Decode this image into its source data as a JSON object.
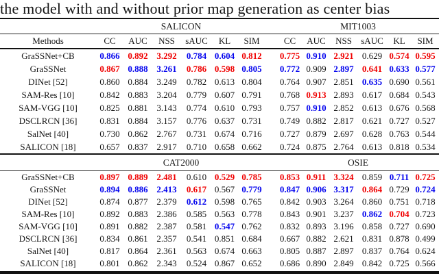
{
  "caption": "the model with and without prior map generation as center bias",
  "colors": {
    "r": "#f00000",
    "b": "#0505ee",
    "n": "#161616"
  },
  "methods_label": "Methods",
  "metrics": [
    "CC",
    "AUC",
    "NSS",
    "sAUC",
    "KL",
    "SIM"
  ],
  "tables": [
    {
      "groups": [
        "SALICON",
        "MIT1003"
      ],
      "show_metric_header": true,
      "rows": [
        {
          "method": "GraSSNet+CB",
          "values": [
            "0.866",
            "0.892",
            "3.292",
            "0.784",
            "0.604",
            "0.812",
            "0.775",
            "0.910",
            "2.921",
            "0.629",
            "0.574",
            "0.595"
          ],
          "colors": [
            "b",
            "r",
            "r",
            "b",
            "b",
            "r",
            "r",
            "b",
            "r",
            "n",
            "r",
            "r"
          ]
        },
        {
          "method": "GraSSNet",
          "values": [
            "0.867",
            "0.888",
            "3.261",
            "0.786",
            "0.598",
            "0.805",
            "0.772",
            "0.909",
            "2.897",
            "0.641",
            "0.633",
            "0.577"
          ],
          "colors": [
            "r",
            "b",
            "b",
            "r",
            "r",
            "b",
            "b",
            "n",
            "b",
            "r",
            "b",
            "b"
          ]
        },
        {
          "method": "DINet [52]",
          "values": [
            "0.860",
            "0.884",
            "3.249",
            "0.782",
            "0.613",
            "0.804",
            "0.764",
            "0.907",
            "2.851",
            "0.635",
            "0.690",
            "0.561"
          ],
          "colors": [
            "n",
            "n",
            "n",
            "n",
            "n",
            "n",
            "n",
            "n",
            "n",
            "b",
            "n",
            "n"
          ]
        },
        {
          "method": "SAM-Res [10]",
          "values": [
            "0.842",
            "0.883",
            "3.204",
            "0.779",
            "0.607",
            "0.791",
            "0.768",
            "0.913",
            "2.893",
            "0.617",
            "0.684",
            "0.543"
          ],
          "colors": [
            "n",
            "n",
            "n",
            "n",
            "n",
            "n",
            "n",
            "r",
            "n",
            "n",
            "n",
            "n"
          ]
        },
        {
          "method": "SAM-VGG [10]",
          "values": [
            "0.825",
            "0.881",
            "3.143",
            "0.774",
            "0.610",
            "0.793",
            "0.757",
            "0.910",
            "2.852",
            "0.613",
            "0.676",
            "0.568"
          ],
          "colors": [
            "n",
            "n",
            "n",
            "n",
            "n",
            "n",
            "n",
            "b",
            "n",
            "n",
            "n",
            "n"
          ]
        },
        {
          "method": "DSCLRCN [36]",
          "values": [
            "0.831",
            "0.884",
            "3.157",
            "0.776",
            "0.637",
            "0.731",
            "0.749",
            "0.882",
            "2.817",
            "0.621",
            "0.727",
            "0.527"
          ],
          "colors": [
            "n",
            "n",
            "n",
            "n",
            "n",
            "n",
            "n",
            "n",
            "n",
            "n",
            "n",
            "n"
          ]
        },
        {
          "method": "SalNet [40]",
          "values": [
            "0.730",
            "0.862",
            "2.767",
            "0.731",
            "0.674",
            "0.716",
            "0.727",
            "0.879",
            "2.697",
            "0.628",
            "0.763",
            "0.544"
          ],
          "colors": [
            "n",
            "n",
            "n",
            "n",
            "n",
            "n",
            "n",
            "n",
            "n",
            "n",
            "n",
            "n"
          ]
        },
        {
          "method": "SALICON [18]",
          "values": [
            "0.657",
            "0.837",
            "2.917",
            "0.710",
            "0.658",
            "0.662",
            "0.724",
            "0.875",
            "2.764",
            "0.613",
            "0.818",
            "0.534"
          ],
          "colors": [
            "n",
            "n",
            "n",
            "n",
            "n",
            "n",
            "n",
            "n",
            "n",
            "n",
            "n",
            "n"
          ]
        }
      ]
    },
    {
      "groups": [
        "CAT2000",
        "OSIE"
      ],
      "show_metric_header": false,
      "rows": [
        {
          "method": "GraSSNet+CB",
          "values": [
            "0.897",
            "0.889",
            "2.481",
            "0.610",
            "0.529",
            "0.785",
            "0.853",
            "0.911",
            "3.324",
            "0.859",
            "0.711",
            "0.725"
          ],
          "colors": [
            "r",
            "r",
            "r",
            "n",
            "r",
            "r",
            "r",
            "r",
            "r",
            "n",
            "b",
            "r"
          ]
        },
        {
          "method": "GraSSNet",
          "values": [
            "0.894",
            "0.886",
            "2.413",
            "0.617",
            "0.567",
            "0.779",
            "0.847",
            "0.906",
            "3.317",
            "0.864",
            "0.729",
            "0.724"
          ],
          "colors": [
            "b",
            "b",
            "b",
            "r",
            "n",
            "b",
            "b",
            "b",
            "b",
            "r",
            "n",
            "b"
          ]
        },
        {
          "method": "DINet [52]",
          "values": [
            "0.874",
            "0.877",
            "2.379",
            "0.612",
            "0.598",
            "0.765",
            "0.842",
            "0.903",
            "3.264",
            "0.860",
            "0.751",
            "0.718"
          ],
          "colors": [
            "n",
            "n",
            "n",
            "b",
            "n",
            "n",
            "n",
            "n",
            "n",
            "n",
            "n",
            "n"
          ]
        },
        {
          "method": "SAM-Res [10]",
          "values": [
            "0.892",
            "0.883",
            "2.386",
            "0.585",
            "0.563",
            "0.778",
            "0.843",
            "0.901",
            "3.237",
            "0.862",
            "0.704",
            "0.723"
          ],
          "colors": [
            "n",
            "n",
            "n",
            "n",
            "n",
            "n",
            "n",
            "n",
            "n",
            "b",
            "r",
            "n"
          ]
        },
        {
          "method": "SAM-VGG [10]",
          "values": [
            "0.891",
            "0.882",
            "2.387",
            "0.581",
            "0.547",
            "0.762",
            "0.832",
            "0.893",
            "3.196",
            "0.858",
            "0.727",
            "0.690"
          ],
          "colors": [
            "n",
            "n",
            "n",
            "n",
            "b",
            "n",
            "n",
            "n",
            "n",
            "n",
            "n",
            "n"
          ]
        },
        {
          "method": "DSCLRCN [36]",
          "values": [
            "0.834",
            "0.861",
            "2.357",
            "0.541",
            "0.851",
            "0.684",
            "0.667",
            "0.882",
            "2.621",
            "0.831",
            "0.878",
            "0.499"
          ],
          "colors": [
            "n",
            "n",
            "n",
            "n",
            "n",
            "n",
            "n",
            "n",
            "n",
            "n",
            "n",
            "n"
          ]
        },
        {
          "method": "SalNet [40]",
          "values": [
            "0.817",
            "0.864",
            "2.361",
            "0.563",
            "0.674",
            "0.663",
            "0.805",
            "0.887",
            "2.897",
            "0.837",
            "0.764",
            "0.624"
          ],
          "colors": [
            "n",
            "n",
            "n",
            "n",
            "n",
            "n",
            "n",
            "n",
            "n",
            "n",
            "n",
            "n"
          ]
        },
        {
          "method": "SALICON [18]",
          "values": [
            "0.801",
            "0.862",
            "2.343",
            "0.524",
            "0.867",
            "0.652",
            "0.686",
            "0.890",
            "2.849",
            "0.842",
            "0.725",
            "0.566"
          ],
          "colors": [
            "n",
            "n",
            "n",
            "n",
            "n",
            "n",
            "n",
            "n",
            "n",
            "n",
            "n",
            "n"
          ]
        }
      ]
    }
  ]
}
